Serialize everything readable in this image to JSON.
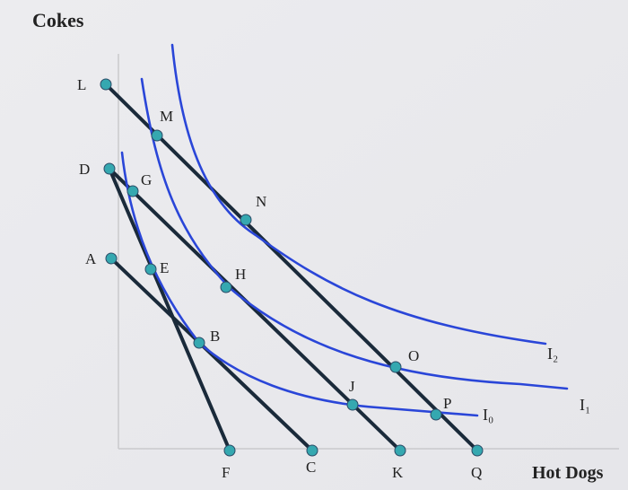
{
  "axes": {
    "y_label": "Cokes",
    "x_label": "Hot Dogs"
  },
  "colors": {
    "background": "#e9e9ec",
    "budget_line": "#1a2a3a",
    "indifference_curve": "#2a46d8",
    "point": "#35a8b0"
  },
  "intercepts_y": [
    "L",
    "D",
    "A"
  ],
  "intercepts_x": [
    "F",
    "C",
    "K",
    "Q"
  ],
  "points": [
    "M",
    "G",
    "N",
    "E",
    "H",
    "B",
    "O",
    "J",
    "P"
  ],
  "curves": {
    "i0": "I₀",
    "i1": "I₁",
    "i2": "I₂"
  }
}
